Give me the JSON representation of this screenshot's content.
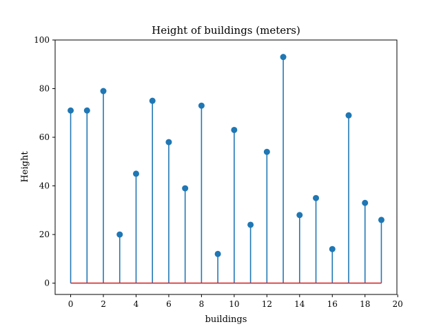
{
  "chart_data": {
    "type": "stem",
    "title": "Height of buildings (meters)",
    "xlabel": "buildings",
    "ylabel": "Height",
    "xlim": [
      -0.95,
      19.95
    ],
    "ylim": [
      -4.65,
      100
    ],
    "xticks": [
      0,
      2,
      4,
      6,
      8,
      10,
      12,
      14,
      16,
      18,
      20
    ],
    "yticks": [
      0,
      20,
      40,
      60,
      80,
      100
    ],
    "grid": false,
    "x": [
      0,
      1,
      2,
      3,
      4,
      5,
      6,
      7,
      8,
      9,
      10,
      11,
      12,
      13,
      14,
      15,
      16,
      17,
      18,
      19
    ],
    "values": [
      71,
      71,
      79,
      20,
      45,
      75,
      58,
      39,
      73,
      12,
      63,
      24,
      54,
      93,
      28,
      35,
      14,
      69,
      33,
      26
    ],
    "colors": {
      "stem": "#1f77b4",
      "marker": "#1f77b4",
      "baseline": "#d62728",
      "axis": "#000000"
    }
  }
}
